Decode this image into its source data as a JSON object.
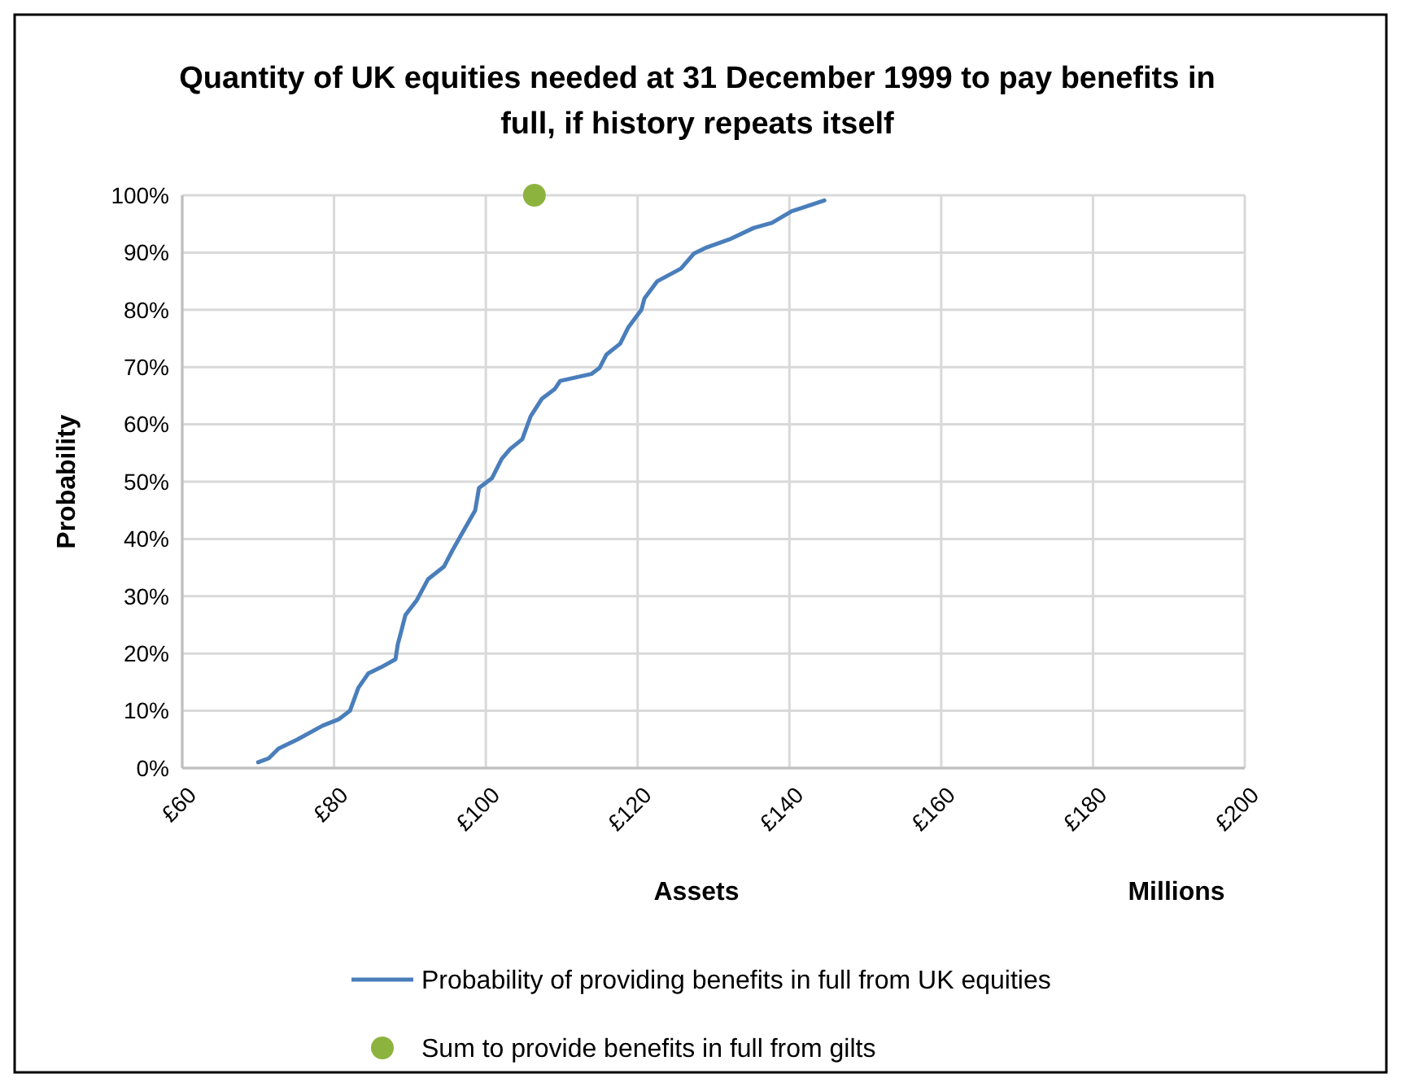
{
  "chart_data": {
    "type": "line",
    "title": "Quantity of UK equities needed at 31 December 1999 to pay benefits in full, if history repeats itself",
    "xlabel": "Assets",
    "ylabel": "Probability",
    "annotations": [
      "Millions"
    ],
    "xlim": [
      60,
      200
    ],
    "xticks": [
      {
        "value": 60,
        "label": "£60"
      },
      {
        "value": 80,
        "label": "£80"
      },
      {
        "value": 100,
        "label": "£100"
      },
      {
        "value": 120,
        "label": "£120"
      },
      {
        "value": 140,
        "label": "£140"
      },
      {
        "value": 160,
        "label": "£160"
      },
      {
        "value": 180,
        "label": "£180"
      },
      {
        "value": 200,
        "label": "£200"
      }
    ],
    "ylim": [
      0,
      100
    ],
    "yticks": [
      {
        "value": 0,
        "label": "0%"
      },
      {
        "value": 10,
        "label": "10%"
      },
      {
        "value": 20,
        "label": "20%"
      },
      {
        "value": 30,
        "label": "30%"
      },
      {
        "value": 40,
        "label": "40%"
      },
      {
        "value": 50,
        "label": "50%"
      },
      {
        "value": 60,
        "label": "60%"
      },
      {
        "value": 70,
        "label": "70%"
      },
      {
        "value": 80,
        "label": "80%"
      },
      {
        "value": 90,
        "label": "90%"
      },
      {
        "value": 100,
        "label": "100%"
      }
    ],
    "grid": true,
    "legend": "bottom",
    "series": [
      {
        "name": "Probability of providing benefits in full from UK equities",
        "color": "#4a7ebb",
        "marker": "none",
        "line_style": "solid",
        "x": [
          70,
          71.4,
          72.7,
          75.2,
          78.5,
          80.6,
          82.1,
          83.2,
          84.5,
          86.2,
          88.1,
          88.4,
          88.8,
          89.4,
          90.9,
          92.4,
          94.5,
          95.6,
          97.1,
          98.6,
          99.1,
          100.8,
          102.1,
          103.2,
          104.8,
          105.9,
          107.4,
          109.1,
          109.8,
          113.9,
          115,
          115.9,
          117.7,
          118.8,
          120.5,
          120.9,
          122.6,
          125.7,
          127.4,
          129.1,
          132.1,
          135.3,
          137.7,
          140.3,
          144.6
        ],
        "values": [
          1,
          1.7,
          3.4,
          5,
          7.4,
          8.5,
          10,
          14,
          16.5,
          17.6,
          19,
          21.6,
          23.6,
          26.7,
          29.3,
          33,
          35.2,
          38,
          41.5,
          45,
          48.9,
          50.6,
          54,
          55.7,
          57.4,
          61.4,
          64.5,
          66.2,
          67.6,
          68.8,
          69.9,
          72.2,
          74.1,
          77,
          80,
          82,
          85,
          87.2,
          89.8,
          90.9,
          92.3,
          94.3,
          95.2,
          97.2,
          99.1
        ]
      },
      {
        "name": "Sum to provide benefits in full from gilts",
        "type": "scatter",
        "color": "#8db33f",
        "marker": "circle",
        "x": [
          106.4
        ],
        "values": [
          100
        ]
      }
    ]
  }
}
